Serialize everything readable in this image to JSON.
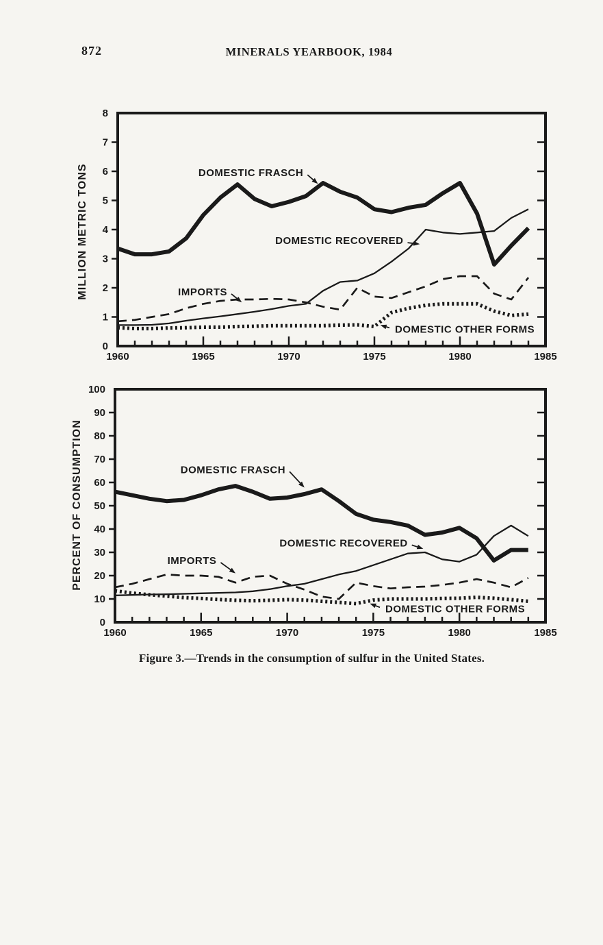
{
  "page": {
    "number": "872",
    "header_title": "MINERALS YEARBOOK, 1984",
    "caption": "Figure 3.—Trends in the consumption of sulfur in the United States.",
    "colors": {
      "paper": "#f6f5f1",
      "ink": "#1a1a1a"
    }
  },
  "chart_data": [
    {
      "type": "line",
      "title": "Trends in the consumption of sulfur in the United States (quantity)",
      "xlabel": "",
      "ylabel": "MILLION METRIC TONS",
      "ylim": [
        0,
        8
      ],
      "yticks": [
        0,
        1,
        2,
        3,
        4,
        5,
        6,
        7,
        8
      ],
      "xlim": [
        1960,
        1985
      ],
      "xtick_labels": [
        1960,
        1965,
        1970,
        1975,
        1980,
        1985
      ],
      "grid": false,
      "legend_position": "inline-annotations",
      "years": [
        1960,
        1961,
        1962,
        1963,
        1964,
        1965,
        1966,
        1967,
        1968,
        1969,
        1970,
        1971,
        1972,
        1973,
        1974,
        1975,
        1976,
        1977,
        1978,
        1979,
        1980,
        1981,
        1982,
        1983,
        1984
      ],
      "series": [
        {
          "name": "DOMESTIC FRASCH",
          "style": "thick",
          "values": [
            3.35,
            3.15,
            3.15,
            3.25,
            3.7,
            4.5,
            5.1,
            5.55,
            5.05,
            4.8,
            4.95,
            5.15,
            5.6,
            5.3,
            5.1,
            4.7,
            4.6,
            4.75,
            4.85,
            5.25,
            5.6,
            4.55,
            2.8,
            3.45,
            4.05
          ]
        },
        {
          "name": "DOMESTIC RECOVERED",
          "style": "thin",
          "values": [
            0.72,
            0.72,
            0.73,
            0.78,
            0.87,
            0.95,
            1.02,
            1.1,
            1.18,
            1.27,
            1.38,
            1.45,
            1.9,
            2.2,
            2.25,
            2.5,
            2.9,
            3.35,
            4.0,
            3.9,
            3.85,
            3.9,
            3.95,
            4.4,
            4.7
          ]
        },
        {
          "name": "IMPORTS",
          "style": "dashed",
          "values": [
            0.85,
            0.9,
            1.0,
            1.1,
            1.3,
            1.45,
            1.55,
            1.6,
            1.6,
            1.62,
            1.6,
            1.5,
            1.35,
            1.25,
            2.0,
            1.7,
            1.65,
            1.85,
            2.05,
            2.3,
            2.4,
            2.4,
            1.8,
            1.6,
            2.35
          ]
        },
        {
          "name": "DOMESTIC OTHER FORMS",
          "style": "dotted",
          "values": [
            0.63,
            0.6,
            0.6,
            0.62,
            0.63,
            0.65,
            0.65,
            0.67,
            0.68,
            0.7,
            0.7,
            0.7,
            0.7,
            0.72,
            0.73,
            0.67,
            1.15,
            1.3,
            1.4,
            1.45,
            1.45,
            1.45,
            1.2,
            1.05,
            1.1
          ]
        }
      ],
      "annotations": [
        {
          "label": "DOMESTIC FRASCH",
          "anchor": "end",
          "text_year": 1970.85,
          "text_value": 5.95,
          "tip_year": 1971.7,
          "tip_value": 5.57
        },
        {
          "label": "DOMESTIC RECOVERED",
          "anchor": "end",
          "text_year": 1976.7,
          "text_value": 3.62,
          "tip_year": 1977.65,
          "tip_value": 3.5
        },
        {
          "label": "IMPORTS",
          "anchor": "end",
          "text_year": 1966.4,
          "text_value": 1.86,
          "tip_year": 1967.25,
          "tip_value": 1.5
        },
        {
          "label": "DOMESTIC OTHER FORMS",
          "anchor": "start",
          "text_year": 1976.2,
          "text_value": 0.58,
          "tip_year": 1975.35,
          "tip_value": 0.72
        }
      ]
    },
    {
      "type": "line",
      "title": "Trends in the consumption of sulfur in the United States (share)",
      "xlabel": "",
      "ylabel": "PERCENT OF CONSUMPTION",
      "ylim": [
        0,
        100
      ],
      "yticks": [
        0,
        10,
        20,
        30,
        40,
        50,
        60,
        70,
        80,
        90,
        100
      ],
      "xlim": [
        1960,
        1985
      ],
      "xtick_labels": [
        1960,
        1965,
        1970,
        1975,
        1980,
        1985
      ],
      "grid": false,
      "legend_position": "inline-annotations",
      "years": [
        1960,
        1961,
        1962,
        1963,
        1964,
        1965,
        1966,
        1967,
        1968,
        1969,
        1970,
        1971,
        1972,
        1973,
        1974,
        1975,
        1976,
        1977,
        1978,
        1979,
        1980,
        1981,
        1982,
        1983,
        1984
      ],
      "series": [
        {
          "name": "DOMESTIC FRASCH",
          "style": "thick",
          "values": [
            56,
            54.5,
            53,
            52,
            52.5,
            54.5,
            57,
            58.5,
            56,
            53,
            53.5,
            55,
            57,
            52,
            46.5,
            44,
            43,
            41.5,
            37.5,
            38.5,
            40.5,
            36,
            26.5,
            31,
            31
          ]
        },
        {
          "name": "DOMESTIC RECOVERED",
          "style": "thin",
          "values": [
            11.5,
            11.7,
            11.9,
            12,
            12.2,
            12.4,
            12.6,
            12.8,
            13.3,
            14.2,
            15.5,
            16.5,
            18.5,
            20.5,
            22,
            24.5,
            27,
            29.5,
            30,
            27,
            26,
            29,
            37,
            41.5,
            37
          ]
        },
        {
          "name": "IMPORTS",
          "style": "dashed",
          "values": [
            15,
            16.5,
            18.5,
            20.5,
            20,
            20,
            19.5,
            17,
            19.5,
            20,
            16.5,
            14,
            11,
            10,
            17,
            15.5,
            14.5,
            15,
            15.3,
            16,
            17,
            18.5,
            17,
            15,
            19
          ]
        },
        {
          "name": "DOMESTIC OTHER FORMS",
          "style": "dotted",
          "values": [
            13.5,
            12.5,
            11.8,
            11.2,
            10.6,
            10.2,
            9.8,
            9.4,
            9.2,
            9.4,
            9.7,
            9.5,
            9,
            8.5,
            8,
            9.5,
            10,
            10,
            10,
            10.2,
            10.3,
            10.7,
            10.3,
            9.7,
            9
          ]
        }
      ],
      "annotations": [
        {
          "label": "DOMESTIC FRASCH",
          "anchor": "end",
          "text_year": 1969.9,
          "text_value": 65.5,
          "tip_year": 1971.0,
          "tip_value": 57.8
        },
        {
          "label": "DOMESTIC RECOVERED",
          "anchor": "end",
          "text_year": 1977.0,
          "text_value": 34.0,
          "tip_year": 1977.9,
          "tip_value": 31.5
        },
        {
          "label": "IMPORTS",
          "anchor": "end",
          "text_year": 1965.9,
          "text_value": 26.5,
          "tip_year": 1967.0,
          "tip_value": 21.0
        },
        {
          "label": "DOMESTIC OTHER FORMS",
          "anchor": "start",
          "text_year": 1975.7,
          "text_value": 5.8,
          "tip_year": 1974.8,
          "tip_value": 8.0
        }
      ]
    }
  ]
}
